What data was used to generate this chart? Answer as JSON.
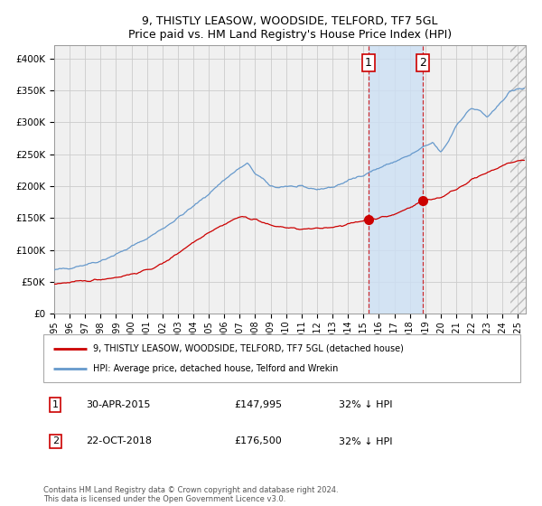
{
  "title": "9, THISTLY LEASOW, WOODSIDE, TELFORD, TF7 5GL",
  "subtitle": "Price paid vs. HM Land Registry's House Price Index (HPI)",
  "ylim": [
    0,
    420000
  ],
  "xlim_start": 1995.0,
  "xlim_end": 2025.5,
  "yticks": [
    0,
    50000,
    100000,
    150000,
    200000,
    250000,
    300000,
    350000,
    400000
  ],
  "ytick_labels": [
    "£0",
    "£50K",
    "£100K",
    "£150K",
    "£200K",
    "£250K",
    "£300K",
    "£350K",
    "£400K"
  ],
  "xticks": [
    1995,
    1996,
    1997,
    1998,
    1999,
    2000,
    2001,
    2002,
    2003,
    2004,
    2005,
    2006,
    2007,
    2008,
    2009,
    2010,
    2011,
    2012,
    2013,
    2014,
    2015,
    2016,
    2017,
    2018,
    2019,
    2020,
    2021,
    2022,
    2023,
    2024,
    2025
  ],
  "hpi_color": "#6699cc",
  "price_color": "#cc0000",
  "dot_color": "#cc0000",
  "vline_color": "#cc0000",
  "shade_color": "#cce0f5",
  "hatch_color": "#bbbbbb",
  "grid_color": "#cccccc",
  "bg_color": "#f0f0f0",
  "point1_x": 2015.33,
  "point1_y": 147995,
  "point2_x": 2018.83,
  "point2_y": 176500,
  "legend_line1": "9, THISTLY LEASOW, WOODSIDE, TELFORD, TF7 5GL (detached house)",
  "legend_line2": "HPI: Average price, detached house, Telford and Wrekin",
  "annotation1_label": "1",
  "annotation2_label": "2",
  "annotation1_date": "30-APR-2015",
  "annotation1_price": "£147,995",
  "annotation1_hpi": "32% ↓ HPI",
  "annotation2_date": "22-OCT-2018",
  "annotation2_price": "£176,500",
  "annotation2_hpi": "32% ↓ HPI",
  "footnote": "Contains HM Land Registry data © Crown copyright and database right 2024.\nThis data is licensed under the Open Government Licence v3.0."
}
